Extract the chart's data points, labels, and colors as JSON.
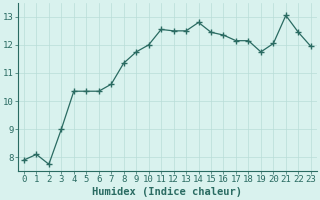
{
  "x": [
    0,
    1,
    2,
    3,
    4,
    5,
    6,
    7,
    8,
    9,
    10,
    11,
    12,
    13,
    14,
    15,
    16,
    17,
    18,
    19,
    20,
    21,
    22,
    23
  ],
  "y": [
    7.9,
    8.1,
    7.75,
    9.0,
    10.35,
    10.35,
    10.35,
    10.6,
    11.35,
    11.75,
    12.0,
    12.55,
    12.5,
    12.5,
    12.8,
    12.45,
    12.35,
    12.15,
    12.15,
    11.75,
    12.05,
    13.05,
    12.45,
    11.95
  ],
  "line_color": "#2a6b62",
  "marker": "+",
  "marker_size": 4,
  "bg_color": "#d9f2ee",
  "grid_color": "#b8ddd8",
  "xlabel": "Humidex (Indice chaleur)",
  "xlim": [
    -0.5,
    23.5
  ],
  "ylim": [
    7.5,
    13.5
  ],
  "yticks": [
    8,
    9,
    10,
    11,
    12,
    13
  ],
  "xticks": [
    0,
    1,
    2,
    3,
    4,
    5,
    6,
    7,
    8,
    9,
    10,
    11,
    12,
    13,
    14,
    15,
    16,
    17,
    18,
    19,
    20,
    21,
    22,
    23
  ],
  "axis_color": "#2a6b62",
  "tick_fontsize": 6.5,
  "label_fontsize": 7.5,
  "lw": 0.9,
  "marker_color": "#2a6b62"
}
